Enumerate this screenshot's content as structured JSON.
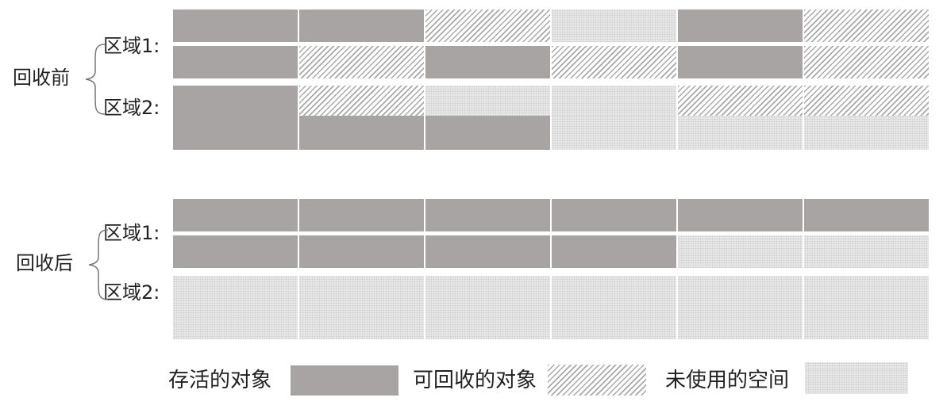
{
  "diagrams": {
    "before": {
      "label": "回收前",
      "regions": [
        {
          "label": "区域1:",
          "rows": [
            [
              "live",
              "live",
              "garbage",
              "unused",
              "live",
              "garbage"
            ],
            [
              "live",
              "garbage",
              "live",
              "garbage",
              "live",
              "garbage"
            ]
          ]
        },
        {
          "label": "区域2:",
          "rows": [
            [
              "live",
              "garbage",
              "unused",
              "unused",
              "garbage",
              "garbage"
            ],
            [
              "live",
              "live",
              "live",
              "unused",
              "unused",
              "unused"
            ]
          ]
        }
      ]
    },
    "after": {
      "label": "回收后",
      "regions": [
        {
          "label": "区域1:",
          "rows": [
            [
              "live",
              "live",
              "live",
              "live",
              "live",
              "live"
            ],
            [
              "live",
              "live",
              "live",
              "live",
              "unused",
              "unused"
            ]
          ]
        },
        {
          "label": "区域2:",
          "rows": [
            [
              "unused",
              "unused",
              "unused",
              "unused",
              "unused",
              "unused"
            ],
            [
              "unused",
              "unused",
              "unused",
              "unused",
              "unused",
              "unused"
            ]
          ]
        }
      ]
    }
  },
  "legend": [
    {
      "key": "live",
      "label": "存活的对象"
    },
    {
      "key": "garbage",
      "label": "可回收的对象"
    },
    {
      "key": "unused",
      "label": "未使用的空间"
    }
  ],
  "colors": {
    "live": "#a7a4a3",
    "garbage_hatch": "#a8a8a8",
    "unused": "#e9e9e9"
  }
}
